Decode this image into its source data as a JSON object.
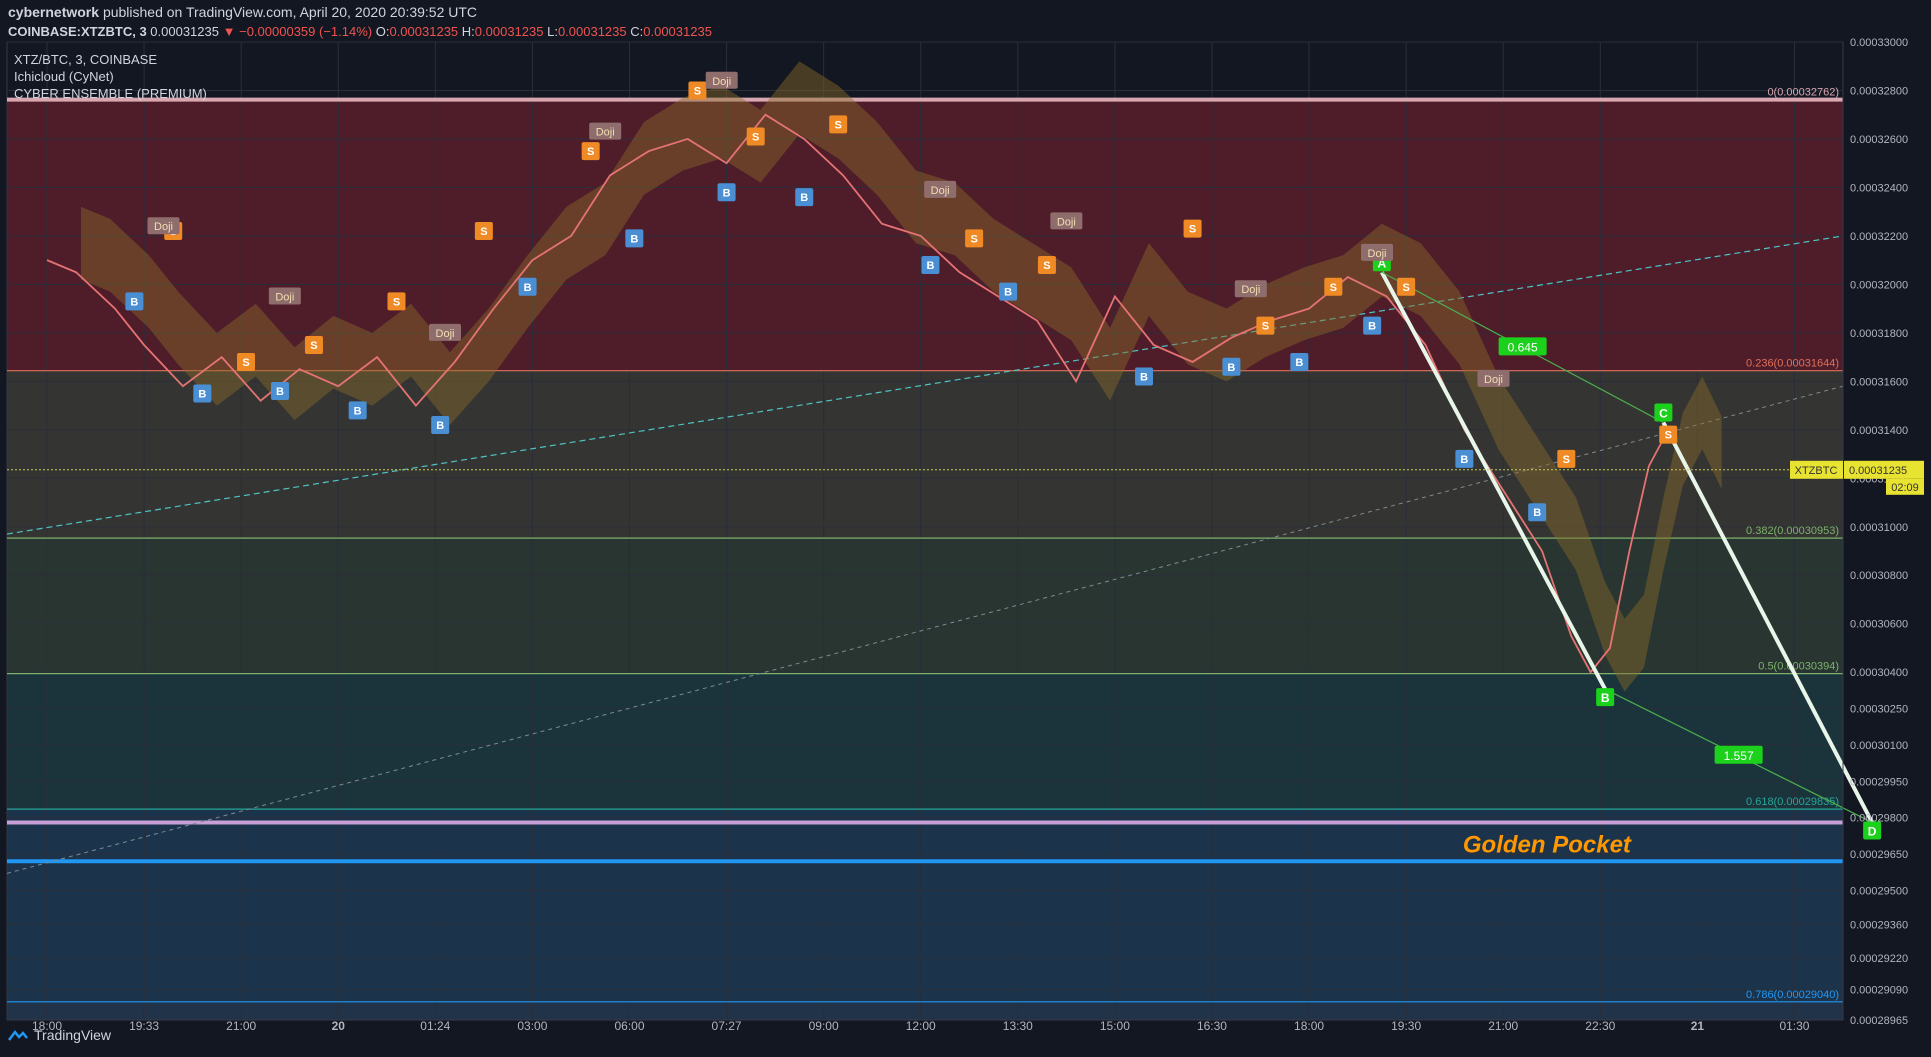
{
  "header": {
    "publisher": "cybernetwork",
    "published_text": "published on TradingView.com, April 20, 2020 20:39:52 UTC",
    "symbol": "COINBASE:XTZBTC, 3",
    "last": "0.00031235",
    "change": "−0.00000359 (−1.14%)",
    "o_label": "O:",
    "o": "0.00031235",
    "h_label": "H:",
    "h": "0.00031235",
    "l_label": "L:",
    "l": "0.00031235",
    "c_label": "C:",
    "c": "0.00031235"
  },
  "indicators": {
    "title": "XTZ/BTC, 3, COINBASE",
    "ind1": "Ichicloud (CyNet)",
    "ind2": "CYBER ENSEMBLE (PREMIUM)"
  },
  "price_tag": {
    "symbol": "XTZBTC",
    "price": "0.00031235",
    "countdown": "02:09"
  },
  "footer": {
    "brand": "TradingView"
  },
  "colors": {
    "background": "#131722",
    "fib_0": "#d8a7b0",
    "fib_618": "#c8a0d8",
    "fib_786": "#2196f3",
    "pattern_line": "#4caf50",
    "marker_green": "#1bd11b",
    "label_text": "#ff9800",
    "buy": "#4a8fd4",
    "sell": "#f08a24"
  },
  "chart_data": {
    "type": "line",
    "ylim": [
      0.00028965,
      0.00033
    ],
    "y_ticks": [
      "0.00033000",
      "0.00032800",
      "0.00032600",
      "0.00032400",
      "0.00032200",
      "0.00032000",
      "0.00031800",
      "0.00031600",
      "0.00031400",
      "0.00031200",
      "0.00031000",
      "0.00030800",
      "0.00030600",
      "0.00030400",
      "0.00030250",
      "0.00030100",
      "0.00029950",
      "0.00029800",
      "0.00029650",
      "0.00029500",
      "0.00029360",
      "0.00029220",
      "0.00029090",
      "0.00028965"
    ],
    "x_ticks": [
      "18:00",
      "19:33",
      "21:00",
      "20",
      "01:24",
      "03:00",
      "06:00",
      "07:27",
      "09:00",
      "12:00",
      "13:30",
      "15:00",
      "16:30",
      "18:00",
      "19:30",
      "21:00",
      "22:30",
      "21",
      "01:30"
    ],
    "fib_levels": [
      {
        "ratio": 0,
        "label": "0(0.00032762)",
        "price": 0.00032762
      },
      {
        "ratio": 0.236,
        "label": "0.236(0.00031644)",
        "price": 0.00031644
      },
      {
        "ratio": 0.382,
        "label": "0.382(0.00030953)",
        "price": 0.00030953
      },
      {
        "ratio": 0.5,
        "label": "0.5(0.00030394)",
        "price": 0.00030394
      },
      {
        "ratio": 0.618,
        "label": "0.618(0.00029835)",
        "price": 0.00029835
      },
      {
        "ratio": 0.786,
        "label": "0.786(0.00029040)",
        "price": 0.0002904
      }
    ],
    "price_series": [
      {
        "t": 0,
        "p": 0.000321
      },
      {
        "t": 0.3,
        "p": 0.0003205
      },
      {
        "t": 0.7,
        "p": 0.000319
      },
      {
        "t": 1.0,
        "p": 0.0003175
      },
      {
        "t": 1.4,
        "p": 0.0003158
      },
      {
        "t": 1.8,
        "p": 0.000317
      },
      {
        "t": 2.2,
        "p": 0.0003152
      },
      {
        "t": 2.6,
        "p": 0.0003165
      },
      {
        "t": 3.0,
        "p": 0.0003158
      },
      {
        "t": 3.4,
        "p": 0.000317
      },
      {
        "t": 3.8,
        "p": 0.000315
      },
      {
        "t": 4.2,
        "p": 0.0003168
      },
      {
        "t": 4.6,
        "p": 0.000319
      },
      {
        "t": 5.0,
        "p": 0.000321
      },
      {
        "t": 5.4,
        "p": 0.000322
      },
      {
        "t": 5.8,
        "p": 0.0003245
      },
      {
        "t": 6.2,
        "p": 0.0003255
      },
      {
        "t": 6.6,
        "p": 0.000326
      },
      {
        "t": 7.0,
        "p": 0.000325
      },
      {
        "t": 7.4,
        "p": 0.000327
      },
      {
        "t": 7.8,
        "p": 0.000326
      },
      {
        "t": 8.2,
        "p": 0.0003245
      },
      {
        "t": 8.6,
        "p": 0.0003225
      },
      {
        "t": 9.0,
        "p": 0.000322
      },
      {
        "t": 9.4,
        "p": 0.0003205
      },
      {
        "t": 9.8,
        "p": 0.0003195
      },
      {
        "t": 10.2,
        "p": 0.0003185
      },
      {
        "t": 10.6,
        "p": 0.000316
      },
      {
        "t": 11.0,
        "p": 0.0003195
      },
      {
        "t": 11.4,
        "p": 0.0003175
      },
      {
        "t": 11.8,
        "p": 0.0003168
      },
      {
        "t": 12.2,
        "p": 0.0003178
      },
      {
        "t": 12.6,
        "p": 0.0003185
      },
      {
        "t": 13.0,
        "p": 0.000319
      },
      {
        "t": 13.4,
        "p": 0.0003203
      },
      {
        "t": 13.8,
        "p": 0.0003195
      },
      {
        "t": 14.2,
        "p": 0.0003175
      },
      {
        "t": 14.6,
        "p": 0.000314
      },
      {
        "t": 15.0,
        "p": 0.0003115
      },
      {
        "t": 15.4,
        "p": 0.000309
      },
      {
        "t": 15.7,
        "p": 0.0003055
      },
      {
        "t": 15.9,
        "p": 0.000304
      },
      {
        "t": 16.1,
        "p": 0.000305
      },
      {
        "t": 16.3,
        "p": 0.000309
      },
      {
        "t": 16.5,
        "p": 0.0003125
      },
      {
        "t": 16.7,
        "p": 0.000314
      },
      {
        "t": 16.9,
        "p": 0.00031235
      }
    ],
    "harmonic": {
      "points": [
        {
          "name": "A",
          "t": 13.75,
          "p": 0.0003205
        },
        {
          "name": "B",
          "t": 16.05,
          "p": 0.0003033
        },
        {
          "name": "C",
          "t": 16.65,
          "p": 0.0003143
        },
        {
          "name": "D",
          "t": 18.8,
          "p": 0.0002978
        }
      ],
      "ratios": [
        "0.645",
        "1.557"
      ]
    },
    "annotation": "Golden Pocket",
    "signals": [
      {
        "type": "B",
        "t": 0.9,
        "p": 0.0003193
      },
      {
        "type": "B",
        "t": 1.6,
        "p": 0.0003155
      },
      {
        "type": "S",
        "t": 1.3,
        "p": 0.0003222
      },
      {
        "type": "S",
        "t": 2.05,
        "p": 0.0003168
      },
      {
        "type": "B",
        "t": 2.4,
        "p": 0.0003156
      },
      {
        "type": "S",
        "t": 2.75,
        "p": 0.0003175
      },
      {
        "type": "B",
        "t": 3.2,
        "p": 0.0003148
      },
      {
        "type": "S",
        "t": 3.6,
        "p": 0.0003193
      },
      {
        "type": "B",
        "t": 4.05,
        "p": 0.0003142
      },
      {
        "type": "S",
        "t": 4.5,
        "p": 0.0003222
      },
      {
        "type": "B",
        "t": 4.95,
        "p": 0.0003199
      },
      {
        "type": "S",
        "t": 5.6,
        "p": 0.0003255
      },
      {
        "type": "B",
        "t": 6.05,
        "p": 0.0003219
      },
      {
        "type": "S",
        "t": 6.7,
        "p": 0.000328
      },
      {
        "type": "B",
        "t": 7.0,
        "p": 0.0003238
      },
      {
        "type": "S",
        "t": 7.3,
        "p": 0.0003261
      },
      {
        "type": "B",
        "t": 7.8,
        "p": 0.0003236
      },
      {
        "type": "S",
        "t": 8.15,
        "p": 0.0003266
      },
      {
        "type": "B",
        "t": 9.1,
        "p": 0.0003208
      },
      {
        "type": "S",
        "t": 9.55,
        "p": 0.0003219
      },
      {
        "type": "B",
        "t": 9.9,
        "p": 0.0003197
      },
      {
        "type": "S",
        "t": 10.3,
        "p": 0.0003208
      },
      {
        "type": "B",
        "t": 11.3,
        "p": 0.0003162
      },
      {
        "type": "S",
        "t": 11.8,
        "p": 0.0003223
      },
      {
        "type": "B",
        "t": 12.2,
        "p": 0.0003166
      },
      {
        "type": "S",
        "t": 12.55,
        "p": 0.0003183
      },
      {
        "type": "B",
        "t": 12.9,
        "p": 0.0003168
      },
      {
        "type": "S",
        "t": 13.25,
        "p": 0.0003199
      },
      {
        "type": "B",
        "t": 13.65,
        "p": 0.0003183
      },
      {
        "type": "S",
        "t": 14.0,
        "p": 0.0003199
      },
      {
        "type": "B",
        "t": 14.6,
        "p": 0.0003128
      },
      {
        "type": "S",
        "t": 15.65,
        "p": 0.0003128
      },
      {
        "type": "B",
        "t": 15.35,
        "p": 0.0003106
      },
      {
        "type": "S",
        "t": 16.7,
        "p": 0.0003138
      }
    ],
    "doji": [
      {
        "t": 1.2,
        "p": 0.0003224
      },
      {
        "t": 2.45,
        "p": 0.0003195
      },
      {
        "t": 4.1,
        "p": 0.000318
      },
      {
        "t": 5.75,
        "p": 0.0003263
      },
      {
        "t": 6.95,
        "p": 0.0003284
      },
      {
        "t": 9.2,
        "p": 0.0003239
      },
      {
        "t": 10.5,
        "p": 0.0003226
      },
      {
        "t": 12.4,
        "p": 0.0003198
      },
      {
        "t": 13.7,
        "p": 0.0003213
      },
      {
        "t": 14.9,
        "p": 0.0003161
      }
    ]
  }
}
